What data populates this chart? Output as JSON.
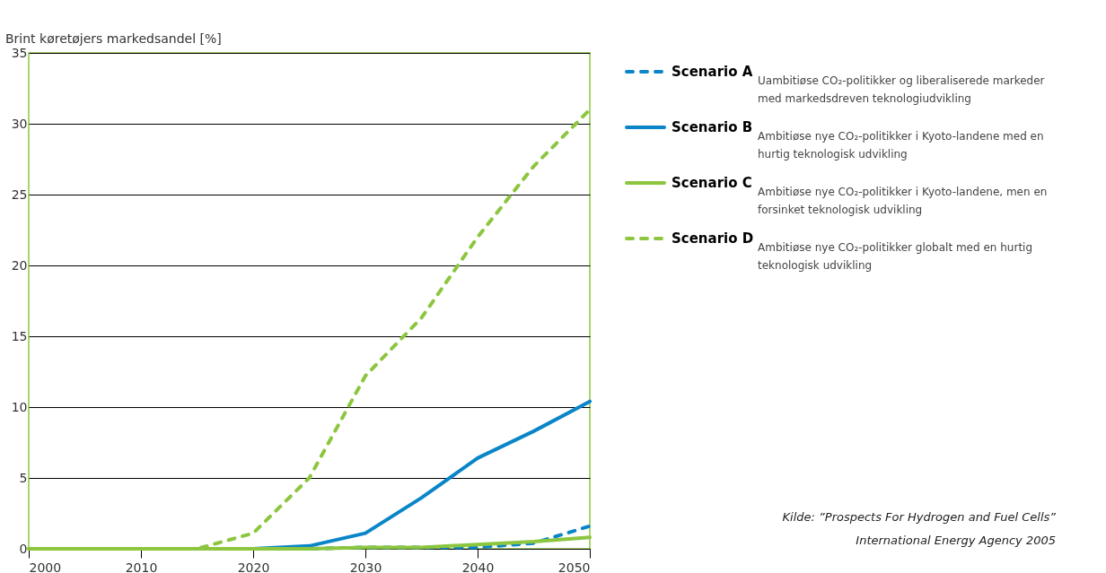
{
  "chart_data": {
    "type": "line",
    "ylabel": "Brint køretøjers markedsandel [%]",
    "x": [
      2000,
      2005,
      2010,
      2015,
      2020,
      2025,
      2030,
      2035,
      2040,
      2045,
      2050
    ],
    "series": [
      {
        "name": "Scenario A",
        "color": "#0a85c8",
        "line_style": "dashed",
        "values": [
          null,
          null,
          null,
          0,
          0,
          0,
          0.1,
          0.1,
          0.1,
          0.4,
          1.6
        ]
      },
      {
        "name": "Scenario B",
        "color": "#0a85c8",
        "line_style": "solid",
        "values": [
          null,
          null,
          null,
          0,
          0,
          0.2,
          1.1,
          3.6,
          6.4,
          8.3,
          10.4
        ]
      },
      {
        "name": "Scenario C",
        "color": "#8cc63f",
        "line_style": "solid",
        "values": [
          0,
          0,
          0,
          0,
          0,
          0,
          0.1,
          0.1,
          0.3,
          0.5,
          0.8
        ]
      },
      {
        "name": "Scenario D",
        "color": "#8cc63f",
        "line_style": "dashed",
        "values": [
          0,
          0,
          0,
          0,
          1.1,
          5,
          12.2,
          16.3,
          22,
          27,
          31
        ]
      }
    ],
    "annotations": [
      "Uambitiøse CO₂-politikker og liberaliserede markeder med markedsdreven teknologiudvikling",
      "Ambitiøse nye CO₂-politikker i Kyoto-landene med en hurtig teknologisk udvikling",
      "Ambitiøse nye CO₂-politikker i Kyoto-landene, men en forsinket teknologisk udvikling",
      "Ambitiøse nye CO₂-politikker globalt med en hurtig teknologisk udvikling",
      "Kilde: ”Prospects For Hydrogen and Fuel Cells” International Energy Agency 2005"
    ],
    "xlim": [
      2000,
      2050
    ],
    "xticks": [
      2000,
      2010,
      2020,
      2030,
      2040,
      2050
    ],
    "ylim": [
      0,
      35
    ],
    "yticks": [
      0,
      5,
      10,
      15,
      20,
      25,
      30,
      35
    ],
    "grid": "y",
    "legend": "right"
  }
}
